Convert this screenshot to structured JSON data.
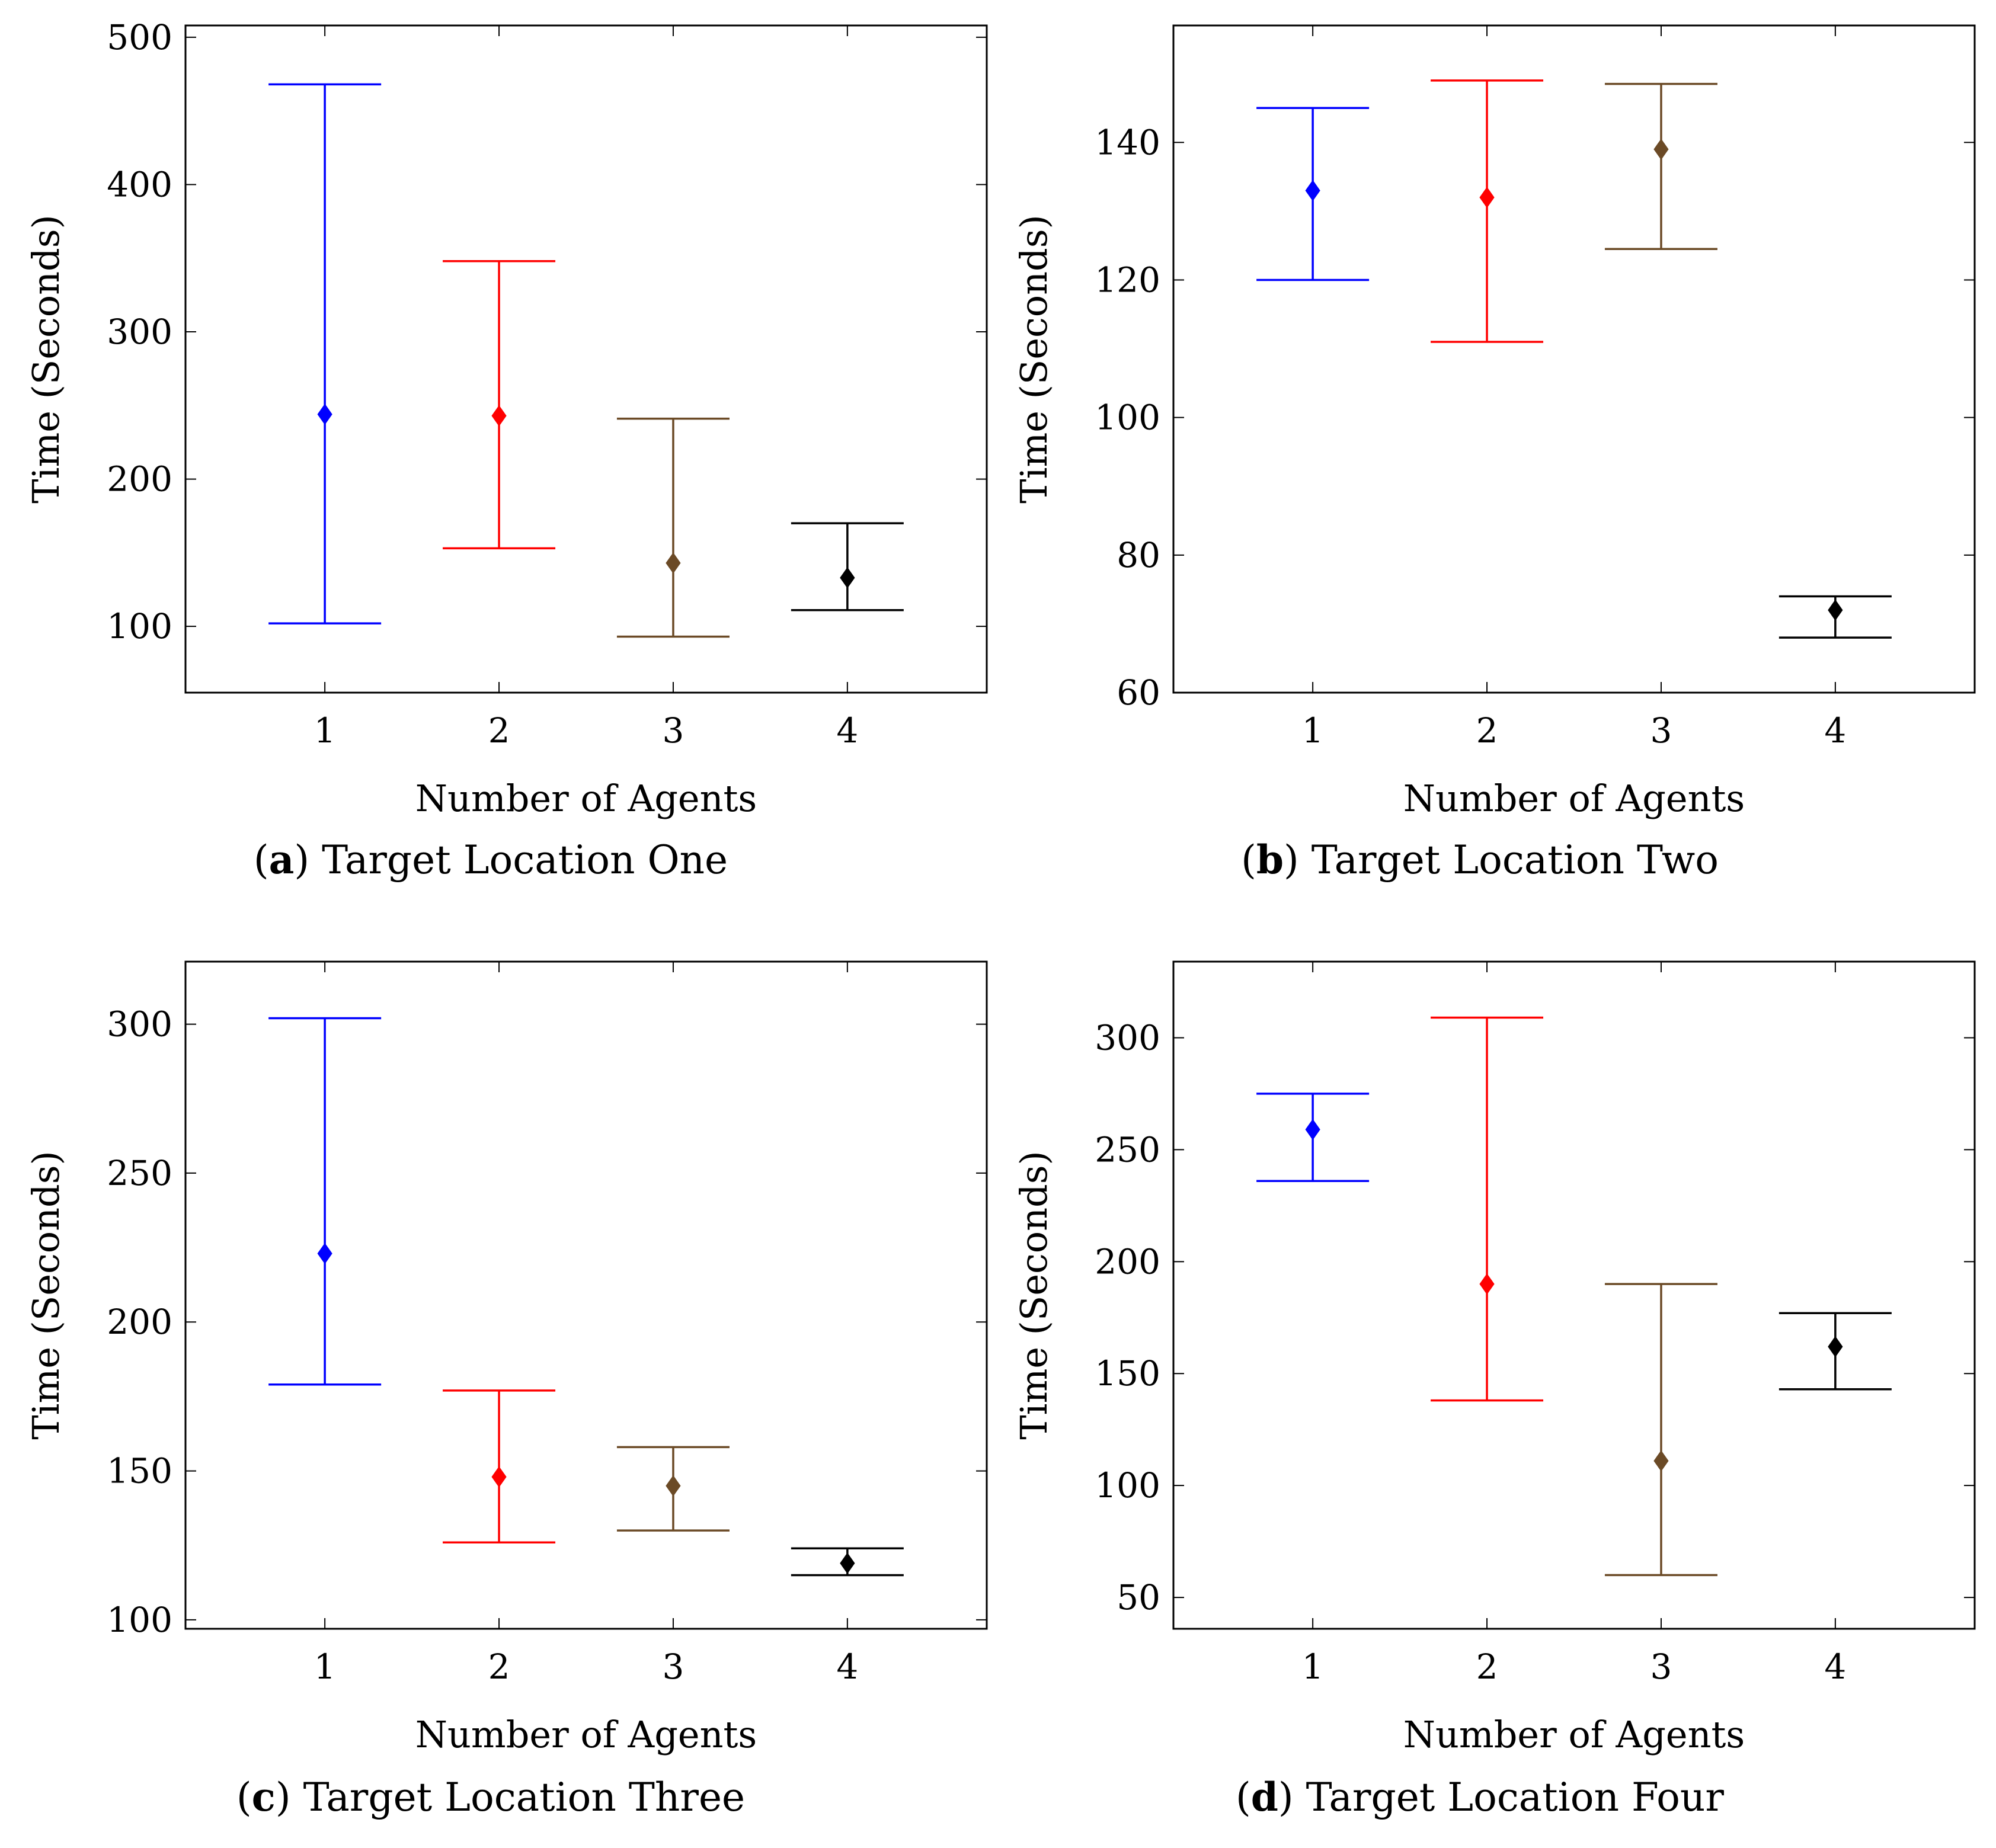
{
  "figure": {
    "colors": {
      "agent1": "#0000ff",
      "agent2": "#ff0000",
      "agent3": "#6b4a26",
      "agent4": "#000000"
    }
  },
  "chart_data": [
    {
      "type": "errorbar",
      "caption_letter": "a",
      "caption_text": "Target Location One",
      "xlabel": "Number of Agents",
      "ylabel": "Time (Seconds)",
      "xlim": [
        0.2,
        4.8
      ],
      "ylim": [
        55,
        508
      ],
      "xticks": [
        1,
        2,
        3,
        4
      ],
      "yticks": [
        100,
        200,
        300,
        400,
        500
      ],
      "grid": false,
      "points": [
        {
          "x": 1,
          "mean": 244,
          "lower": 102,
          "upper": 468
        },
        {
          "x": 2,
          "mean": 243,
          "lower": 153,
          "upper": 348
        },
        {
          "x": 3,
          "mean": 143,
          "lower": 93,
          "upper": 241
        },
        {
          "x": 4,
          "mean": 133,
          "lower": 111,
          "upper": 170
        }
      ]
    },
    {
      "type": "errorbar",
      "caption_letter": "b",
      "caption_text": "Target Location Two",
      "xlabel": "Number of Agents",
      "ylabel": "Time (Seconds)",
      "xlim": [
        0.2,
        4.8
      ],
      "ylim": [
        60,
        157
      ],
      "xticks": [
        1,
        2,
        3,
        4
      ],
      "yticks": [
        60,
        80,
        100,
        120,
        140
      ],
      "grid": false,
      "points": [
        {
          "x": 1,
          "mean": 133,
          "lower": 120,
          "upper": 145
        },
        {
          "x": 2,
          "mean": 132,
          "lower": 111,
          "upper": 149
        },
        {
          "x": 3,
          "mean": 139,
          "lower": 124.5,
          "upper": 148.5
        },
        {
          "x": 4,
          "mean": 72,
          "lower": 68,
          "upper": 74
        }
      ]
    },
    {
      "type": "errorbar",
      "caption_letter": "c",
      "caption_text": "Target Location Three",
      "xlabel": "Number of Agents",
      "ylabel": "Time (Seconds)",
      "xlim": [
        0.2,
        4.8
      ],
      "ylim": [
        97,
        321
      ],
      "xticks": [
        1,
        2,
        3,
        4
      ],
      "yticks": [
        100,
        150,
        200,
        250,
        300
      ],
      "grid": false,
      "points": [
        {
          "x": 1,
          "mean": 223,
          "lower": 179,
          "upper": 302
        },
        {
          "x": 2,
          "mean": 148,
          "lower": 126,
          "upper": 177
        },
        {
          "x": 3,
          "mean": 145,
          "lower": 130,
          "upper": 158
        },
        {
          "x": 4,
          "mean": 119,
          "lower": 115,
          "upper": 124
        }
      ]
    },
    {
      "type": "errorbar",
      "caption_letter": "d",
      "caption_text": "Target Location Four",
      "xlabel": "Number of Agents",
      "ylabel": "Time (Seconds)",
      "xlim": [
        0.2,
        4.8
      ],
      "ylim": [
        36,
        334
      ],
      "xticks": [
        1,
        2,
        3,
        4
      ],
      "yticks": [
        50,
        100,
        150,
        200,
        250,
        300
      ],
      "grid": false,
      "points": [
        {
          "x": 1,
          "mean": 259,
          "lower": 236,
          "upper": 275
        },
        {
          "x": 2,
          "mean": 190,
          "lower": 138,
          "upper": 309
        },
        {
          "x": 3,
          "mean": 111,
          "lower": 60,
          "upper": 190
        },
        {
          "x": 4,
          "mean": 162,
          "lower": 143,
          "upper": 177
        }
      ]
    }
  ]
}
